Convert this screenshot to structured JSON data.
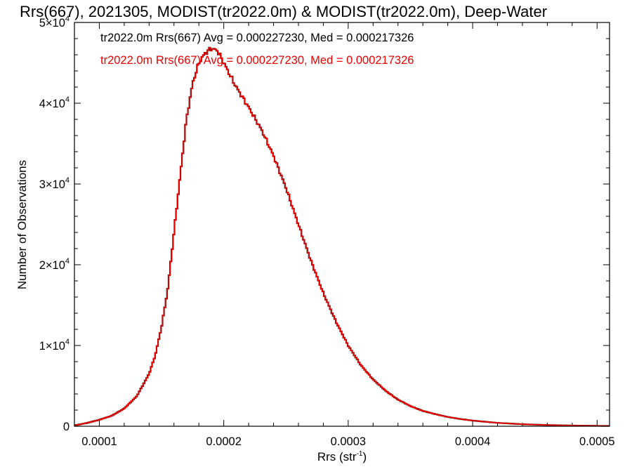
{
  "chart_data": {
    "type": "line",
    "style": "step-histogram",
    "title": "Rrs(667), 2021305, MODIST(tr2022.0m) & MODIST(tr2022.0m), Deep-Water",
    "xlabel": "Rrs (str",
    "xlabel_sup": "-1",
    "xlabel_end": ")",
    "ylabel": "Number of Observations",
    "xlim": [
      8e-05,
      0.00051
    ],
    "ylim": [
      0,
      50000
    ],
    "x_ticks": [
      {
        "value": 0.0001,
        "label": "0.0001"
      },
      {
        "value": 0.0002,
        "label": "0.0002"
      },
      {
        "value": 0.0003,
        "label": "0.0003"
      },
      {
        "value": 0.0004,
        "label": "0.0004"
      },
      {
        "value": 0.0005,
        "label": "0.0005"
      }
    ],
    "y_ticks": [
      {
        "value": 0,
        "base": "0",
        "sup": ""
      },
      {
        "value": 10000,
        "base": "1×10",
        "sup": "4"
      },
      {
        "value": 20000,
        "base": "2×10",
        "sup": "4"
      },
      {
        "value": 30000,
        "base": "3×10",
        "sup": "4"
      },
      {
        "value": 40000,
        "base": "4×10",
        "sup": "4"
      },
      {
        "value": 50000,
        "base": "5×10",
        "sup": "4"
      }
    ],
    "annotations": [
      {
        "text": "tr2022.0m Rrs(667) Avg = 0.000227230, Med = 0.000217326",
        "color": "#000000"
      },
      {
        "text": "tr2022.0m Rrs(667) Avg = 0.000227230, Med = 0.000217326",
        "color": "#ee0000"
      }
    ],
    "series": [
      {
        "color": "#000000",
        "x": [
          8e-05,
          9e-05,
          0.0001,
          0.00011,
          0.00012,
          0.00013,
          0.00014,
          0.000145,
          0.00015,
          0.000155,
          0.00016,
          0.000165,
          0.00017,
          0.000175,
          0.00018,
          0.000185,
          0.00019,
          0.000195,
          0.0002,
          0.000205,
          0.00021,
          0.00022,
          0.00023,
          0.00024,
          0.00025,
          0.00026,
          0.00027,
          0.00028,
          0.00029,
          0.0003,
          0.00031,
          0.00032,
          0.00033,
          0.00034,
          0.00035,
          0.00036,
          0.00037,
          0.00038,
          0.00039,
          0.0004,
          0.00042,
          0.00044,
          0.00046,
          0.00048,
          0.0005,
          0.00051
        ],
        "y": [
          100,
          400,
          800,
          1300,
          2200,
          3700,
          6500,
          8800,
          12300,
          17000,
          24000,
          31000,
          38000,
          42500,
          45000,
          46200,
          46800,
          46500,
          45000,
          43500,
          42000,
          39500,
          36800,
          33500,
          29500,
          25000,
          20500,
          16500,
          13000,
          10000,
          7600,
          5800,
          4400,
          3300,
          2500,
          1900,
          1500,
          1150,
          900,
          700,
          420,
          250,
          150,
          90,
          50,
          40
        ]
      },
      {
        "color": "#ee0000",
        "x": [
          8e-05,
          9e-05,
          0.0001,
          0.00011,
          0.00012,
          0.00013,
          0.00014,
          0.000145,
          0.00015,
          0.000155,
          0.00016,
          0.000165,
          0.00017,
          0.000175,
          0.00018,
          0.000185,
          0.00019,
          0.000195,
          0.0002,
          0.000205,
          0.00021,
          0.00022,
          0.00023,
          0.00024,
          0.00025,
          0.00026,
          0.00027,
          0.00028,
          0.00029,
          0.0003,
          0.00031,
          0.00032,
          0.00033,
          0.00034,
          0.00035,
          0.00036,
          0.00037,
          0.00038,
          0.00039,
          0.0004,
          0.00042,
          0.00044,
          0.00046,
          0.00048,
          0.0005,
          0.00051
        ],
        "y": [
          100,
          400,
          800,
          1300,
          2200,
          3700,
          6500,
          8800,
          12300,
          17000,
          24000,
          31000,
          38000,
          42500,
          45000,
          46200,
          46800,
          46500,
          45000,
          43500,
          42000,
          39500,
          36800,
          33500,
          29500,
          25000,
          20500,
          16500,
          13000,
          10000,
          7600,
          5800,
          4400,
          3300,
          2500,
          1900,
          1500,
          1150,
          900,
          700,
          420,
          250,
          150,
          90,
          50,
          40
        ]
      }
    ]
  }
}
